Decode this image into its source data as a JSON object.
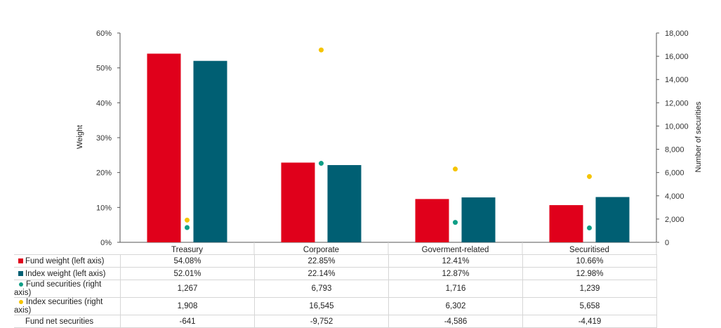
{
  "chart_data": {
    "type": "bar",
    "categories": [
      "Treasury",
      "Corporate",
      "Goverment-related",
      "Securitised"
    ],
    "y_left": {
      "label": "Weight",
      "lim": [
        0,
        60
      ],
      "ticks": [
        "0%",
        "10%",
        "20%",
        "30%",
        "40%",
        "50%",
        "60%"
      ],
      "tick_values": [
        0,
        10,
        20,
        30,
        40,
        50,
        60
      ]
    },
    "y_right": {
      "label": "Number of securities",
      "lim": [
        0,
        18000
      ],
      "ticks": [
        "0",
        "2,000",
        "4,000",
        "6,000",
        "8,000",
        "10,000",
        "12,000",
        "14,000",
        "16,000",
        "18,000"
      ],
      "tick_values": [
        0,
        2000,
        4000,
        6000,
        8000,
        10000,
        12000,
        14000,
        16000,
        18000
      ]
    },
    "series": [
      {
        "name": "Fund weight (left axis)",
        "kind": "bar",
        "axis": "left",
        "color": "#e0001b",
        "values": [
          54.08,
          22.85,
          12.41,
          10.66
        ],
        "labels": [
          "54.08%",
          "22.85%",
          "12.41%",
          "10.66%"
        ]
      },
      {
        "name": "Index weight (left axis)",
        "kind": "bar",
        "axis": "left",
        "color": "#005f73",
        "values": [
          52.01,
          22.14,
          12.87,
          12.98
        ],
        "labels": [
          "52.01%",
          "22.14%",
          "12.87%",
          "12.98%"
        ]
      },
      {
        "name": "Fund securities (right axis)",
        "kind": "dot",
        "axis": "right",
        "color": "#0e9e86",
        "values": [
          1267,
          6793,
          1716,
          1239
        ],
        "labels": [
          "1,267",
          "6,793",
          "1,716",
          "1,239"
        ]
      },
      {
        "name": "Index securities (right axis)",
        "kind": "dot",
        "axis": "right",
        "color": "#f5c400",
        "values": [
          1908,
          16545,
          6302,
          5658
        ],
        "labels": [
          "1,908",
          "16,545",
          "6,302",
          "5,658"
        ]
      },
      {
        "name": "Fund net securities",
        "kind": "none",
        "axis": "",
        "color": "",
        "values": [
          -641,
          -9752,
          -4586,
          -4419
        ],
        "labels": [
          "-641",
          "-9,752",
          "-4,586",
          "-4,419"
        ]
      }
    ],
    "grid": false,
    "legend": "table-below"
  }
}
